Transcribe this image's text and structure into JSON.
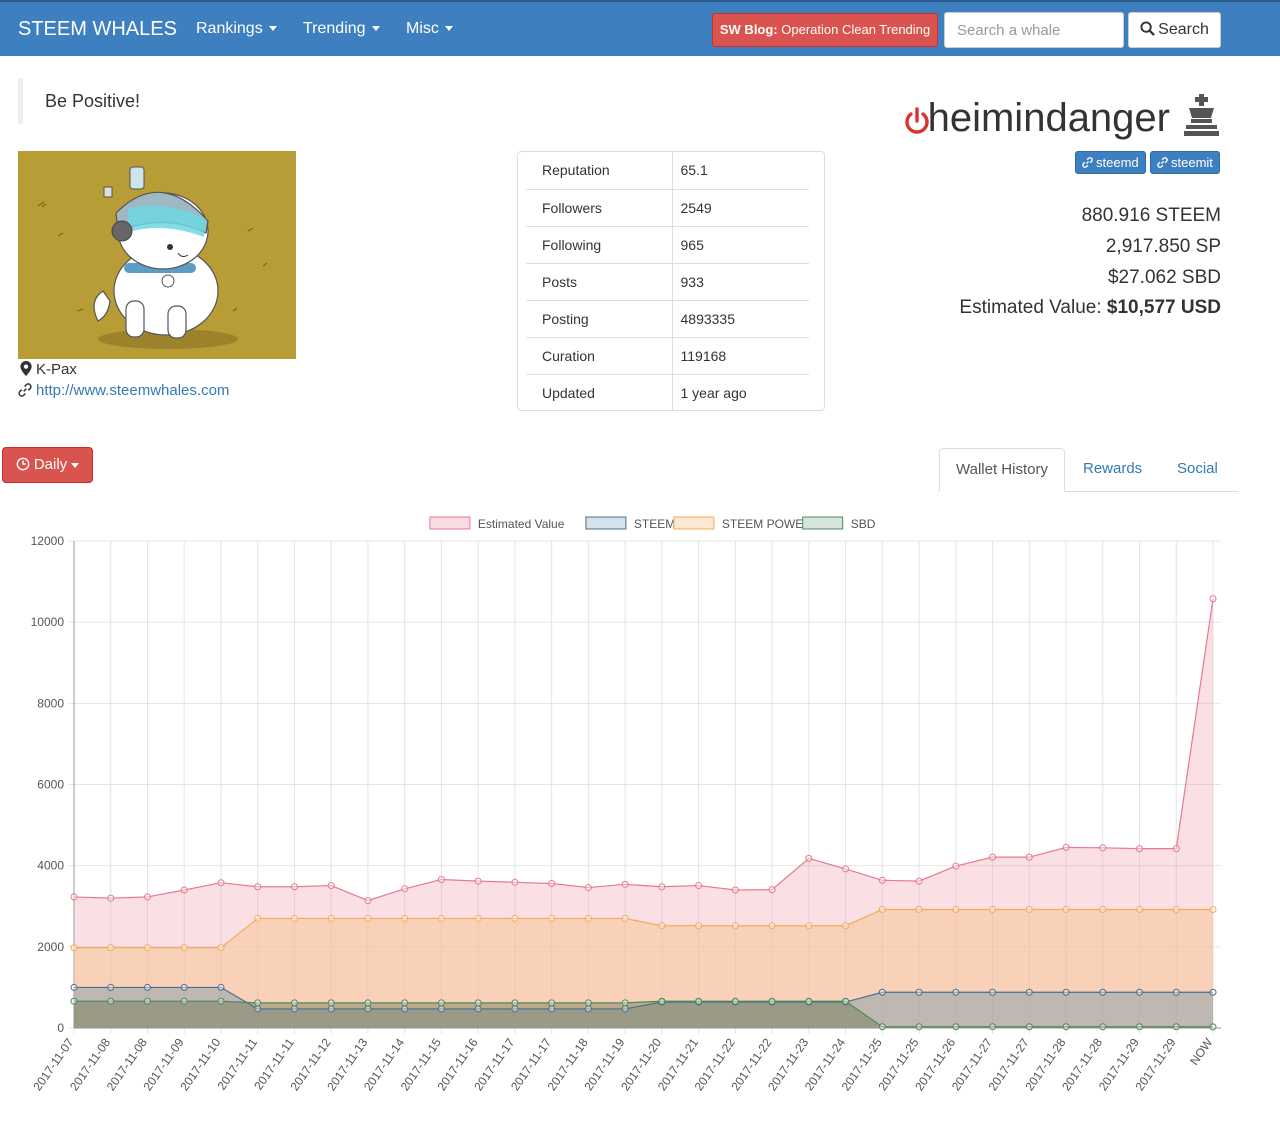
{
  "navbar": {
    "brand": "STEEM WHALES",
    "menu": [
      {
        "label": "Rankings"
      },
      {
        "label": "Trending"
      },
      {
        "label": "Misc"
      }
    ],
    "blog_prefix": "SW Blog:",
    "blog_text": " Operation Clean Trending",
    "search_placeholder": "Search a whale",
    "search_label": "Search",
    "bg_color": "#3e7fc0"
  },
  "profile": {
    "motto": "Be Positive!",
    "location": "K-Pax",
    "website": "http://www.steemwhales.com",
    "username": "heimindanger",
    "links": [
      "steemd",
      "steemit"
    ],
    "status_icon": "power-icon",
    "rank_icon": "chess-king-icon"
  },
  "stats": [
    {
      "label": "Reputation",
      "value": "65.1"
    },
    {
      "label": "Followers",
      "value": "2549"
    },
    {
      "label": "Following",
      "value": "965"
    },
    {
      "label": "Posts",
      "value": "933"
    },
    {
      "label": "Posting",
      "value": "4893335"
    },
    {
      "label": "Curation",
      "value": "119168"
    },
    {
      "label": "Updated",
      "value": "1 year ago"
    }
  ],
  "balances": {
    "steem": "880.916 STEEM",
    "sp": "2,917.850 SP",
    "sbd": "$27.062 SBD",
    "est_label": "Estimated Value: ",
    "est_value": "$10,577 USD"
  },
  "controls": {
    "period": "Daily",
    "tabs": [
      {
        "label": "Wallet History",
        "active": true
      },
      {
        "label": "Rewards",
        "active": false
      },
      {
        "label": "Social",
        "active": false
      }
    ]
  },
  "chart_data": {
    "type": "area",
    "ylim": [
      0,
      12000
    ],
    "yticks": [
      0,
      2000,
      4000,
      6000,
      8000,
      10000,
      12000
    ],
    "grid": true,
    "legend_position": "top",
    "x": [
      "2017-11-07",
      "2017-11-08",
      "2017-11-08",
      "2017-11-09",
      "2017-11-10",
      "2017-11-11",
      "2017-11-11",
      "2017-11-12",
      "2017-11-13",
      "2017-11-14",
      "2017-11-15",
      "2017-11-16",
      "2017-11-17",
      "2017-11-17",
      "2017-11-18",
      "2017-11-19",
      "2017-11-20",
      "2017-11-21",
      "2017-11-22",
      "2017-11-22",
      "2017-11-23",
      "2017-11-24",
      "2017-11-25",
      "2017-11-25",
      "2017-11-26",
      "2017-11-27",
      "2017-11-27",
      "2017-11-28",
      "2017-11-28",
      "2017-11-29",
      "2017-11-29",
      "NOW"
    ],
    "series": [
      {
        "name": "Estimated Value",
        "color": "#e8798e",
        "fill": "rgba(242,163,180,0.35)",
        "values": [
          3230,
          3200,
          3230,
          3400,
          3580,
          3480,
          3480,
          3510,
          3140,
          3430,
          3660,
          3620,
          3590,
          3560,
          3460,
          3540,
          3480,
          3510,
          3400,
          3410,
          4180,
          3920,
          3640,
          3620,
          3990,
          4210,
          4210,
          4450,
          4440,
          4420,
          4420,
          10577
        ]
      },
      {
        "name": "STEEM POWER",
        "color": "#f0ad5e",
        "fill": "rgba(248,196,150,0.55)",
        "values": [
          1980,
          1980,
          1980,
          1980,
          1980,
          2700,
          2700,
          2700,
          2700,
          2700,
          2700,
          2700,
          2700,
          2700,
          2700,
          2700,
          2520,
          2520,
          2520,
          2520,
          2520,
          2520,
          2920,
          2920,
          2920,
          2920,
          2920,
          2920,
          2920,
          2920,
          2920,
          2920
        ]
      },
      {
        "name": "STEEM",
        "color": "#4a6f8c",
        "fill": "rgba(120,150,170,0.45)",
        "values": [
          1000,
          1000,
          1000,
          1000,
          1000,
          470,
          470,
          470,
          470,
          470,
          470,
          470,
          470,
          470,
          470,
          470,
          640,
          640,
          640,
          640,
          640,
          640,
          880,
          880,
          880,
          880,
          880,
          880,
          880,
          880,
          880,
          880
        ]
      },
      {
        "name": "SBD",
        "color": "#4e8a5f",
        "fill": "rgba(110,120,80,0.45)",
        "values": [
          660,
          660,
          660,
          660,
          660,
          620,
          620,
          620,
          620,
          620,
          620,
          620,
          620,
          620,
          620,
          620,
          660,
          660,
          660,
          660,
          660,
          660,
          30,
          30,
          30,
          30,
          30,
          30,
          30,
          30,
          30,
          27
        ]
      }
    ],
    "legend": [
      {
        "name": "Estimated Value",
        "color": "#e8798e",
        "fill": "#fadbe1"
      },
      {
        "name": "STEEM",
        "color": "#4a6f8c",
        "fill": "#d6e1ea"
      },
      {
        "name": "STEEM POWER",
        "color": "#f0ad5e",
        "fill": "#fde9d3"
      },
      {
        "name": "SBD",
        "color": "#4e8a5f",
        "fill": "#d6e4da"
      }
    ]
  }
}
